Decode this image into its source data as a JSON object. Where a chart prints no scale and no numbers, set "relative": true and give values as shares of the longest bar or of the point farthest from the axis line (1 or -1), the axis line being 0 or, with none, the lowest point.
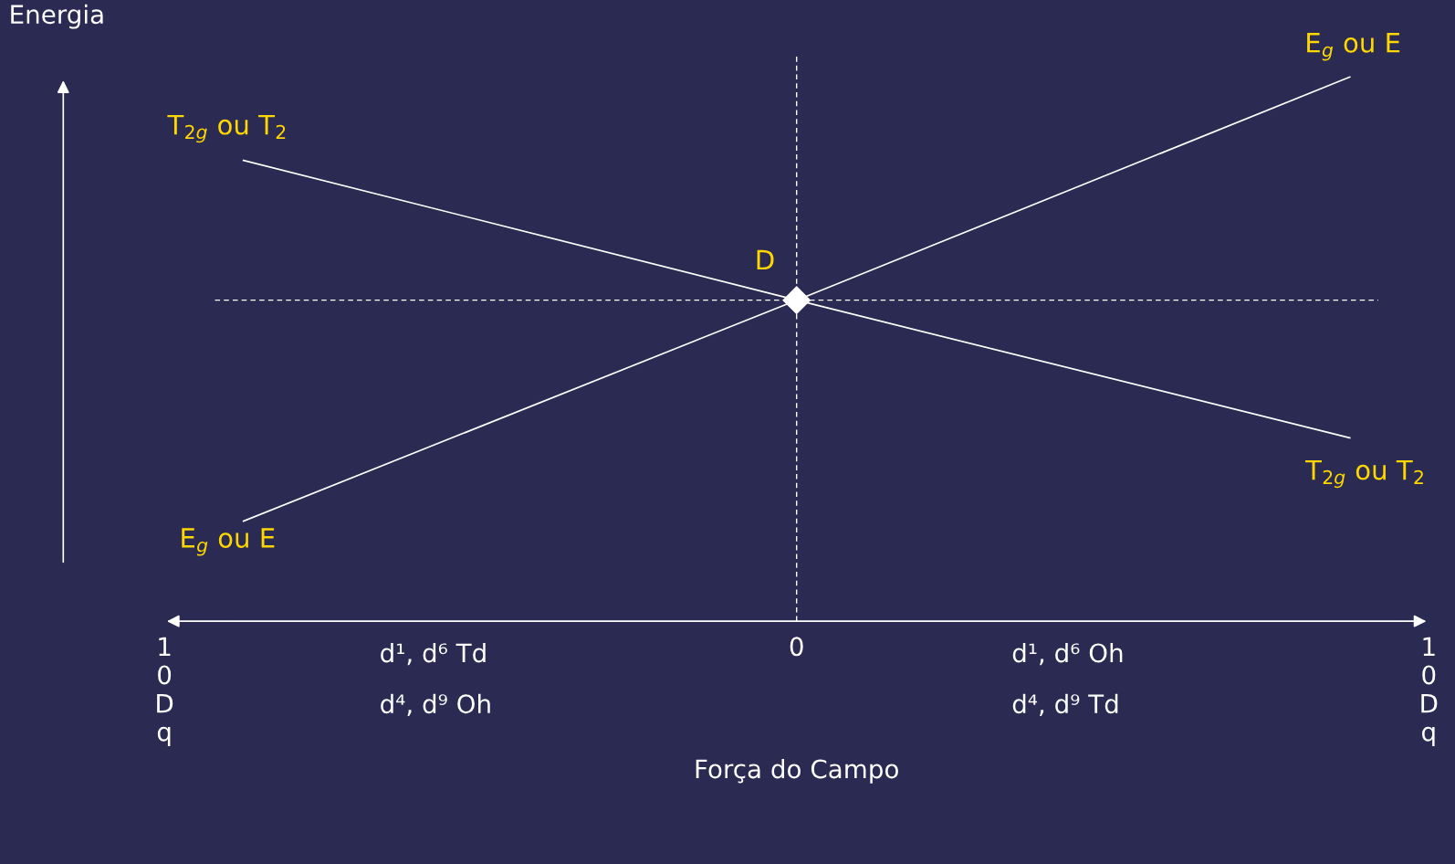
{
  "chart_data": {
    "type": "line",
    "relative": true,
    "xlabel": "Força do Campo",
    "ylabel": "Energia",
    "categories": [
      "10Dq",
      null,
      null,
      null,
      null,
      null,
      null,
      null,
      "0",
      null,
      null,
      null,
      null,
      null,
      null,
      null,
      "10Dq"
    ],
    "series": [
      {
        "color": "#ffffff",
        "values": [
          null,
          0.847,
          null,
          null,
          null,
          null,
          null,
          null,
          0.59,
          null,
          null,
          null,
          null,
          null,
          null,
          0.337,
          null
        ]
      },
      {
        "color": "#ffffff",
        "values": [
          null,
          0.184,
          null,
          null,
          null,
          null,
          null,
          null,
          0.59,
          null,
          null,
          null,
          null,
          null,
          null,
          1.0,
          null
        ]
      },
      {
        "type": "scatter",
        "marker": "diamond",
        "color": "#ffffff",
        "values": [
          null,
          null,
          null,
          null,
          null,
          null,
          null,
          null,
          0.59,
          null,
          null,
          null,
          null,
          null,
          null,
          null,
          null
        ]
      }
    ],
    "ref_lines": [
      {
        "axis": "x",
        "value": "0",
        "line_style": "dashed",
        "color": "#ffffff"
      },
      {
        "axis": "y",
        "value": 0.59,
        "line_style": "dashed",
        "color": "#ffffff"
      }
    ],
    "annotations": [
      "T$_{2g}$ ou T$_{2}$",
      "E$_{g}$ ou E",
      "E$_{g}$ ou E",
      "T$_{2g}$ ou T$_{2}$",
      {
        "text": "D",
        "x": "0",
        "y": 0.59
      },
      "d¹, d⁶ Td",
      "d⁴, d⁹ Oh",
      "d¹, d⁶ Oh",
      "d⁴, d⁹ Td"
    ],
    "grid": false,
    "legend": false
  }
}
